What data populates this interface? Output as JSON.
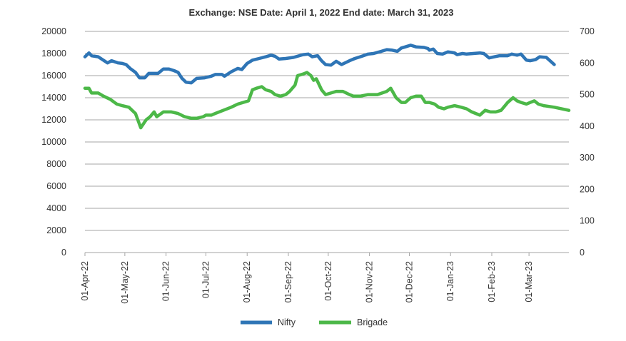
{
  "chart_data": {
    "type": "line",
    "title": "Exchange: NSE Date: April 1, 2022 End date: March 31, 2023",
    "y_left": {
      "ylim": [
        0,
        20000
      ],
      "ticks": [
        "0",
        "2000",
        "4000",
        "6000",
        "8000",
        "10000",
        "12000",
        "14000",
        "16000",
        "18000",
        "20000"
      ]
    },
    "y_right": {
      "ylim": [
        0,
        700
      ],
      "ticks": [
        "0",
        "100",
        "200",
        "300",
        "400",
        "500",
        "600",
        "700"
      ]
    },
    "x_ticks": [
      "01-Apr-22",
      "01-May-22",
      "01-Jun-22",
      "01-Jul-22",
      "01-Aug-22",
      "01-Sep-22",
      "01-Oct-22",
      "01-Nov-22",
      "01-Dec-22",
      "01-Jan-23",
      "01-Feb-23",
      "01-Mar-23"
    ],
    "grid": true,
    "legend_position": "bottom",
    "series": [
      {
        "name": "Nifty",
        "axis": "left",
        "color": "#2e75b6",
        "points": [
          [
            "2022-04-01",
            17700
          ],
          [
            "2022-04-04",
            18050
          ],
          [
            "2022-04-06",
            17800
          ],
          [
            "2022-04-11",
            17700
          ],
          [
            "2022-04-18",
            17150
          ],
          [
            "2022-04-21",
            17350
          ],
          [
            "2022-04-26",
            17150
          ],
          [
            "2022-04-29",
            17100
          ],
          [
            "2022-05-02",
            17000
          ],
          [
            "2022-05-05",
            16650
          ],
          [
            "2022-05-09",
            16300
          ],
          [
            "2022-05-12",
            15800
          ],
          [
            "2022-05-16",
            15800
          ],
          [
            "2022-05-19",
            16200
          ],
          [
            "2022-05-23",
            16200
          ],
          [
            "2022-05-26",
            16200
          ],
          [
            "2022-05-30",
            16600
          ],
          [
            "2022-06-03",
            16600
          ],
          [
            "2022-06-07",
            16450
          ],
          [
            "2022-06-10",
            16300
          ],
          [
            "2022-06-13",
            15750
          ],
          [
            "2022-06-16",
            15400
          ],
          [
            "2022-06-20",
            15350
          ],
          [
            "2022-06-24",
            15750
          ],
          [
            "2022-06-30",
            15800
          ],
          [
            "2022-07-05",
            15950
          ],
          [
            "2022-07-08",
            16100
          ],
          [
            "2022-07-13",
            16100
          ],
          [
            "2022-07-15",
            15950
          ],
          [
            "2022-07-20",
            16350
          ],
          [
            "2022-07-25",
            16650
          ],
          [
            "2022-07-28",
            16550
          ],
          [
            "2022-08-01",
            17100
          ],
          [
            "2022-08-05",
            17400
          ],
          [
            "2022-08-10",
            17550
          ],
          [
            "2022-08-15",
            17700
          ],
          [
            "2022-08-19",
            17850
          ],
          [
            "2022-08-22",
            17750
          ],
          [
            "2022-08-25",
            17500
          ],
          [
            "2022-08-30",
            17550
          ],
          [
            "2022-09-05",
            17650
          ],
          [
            "2022-09-12",
            17900
          ],
          [
            "2022-09-16",
            17950
          ],
          [
            "2022-09-19",
            17700
          ],
          [
            "2022-09-23",
            17800
          ],
          [
            "2022-09-26",
            17350
          ],
          [
            "2022-09-29",
            17000
          ],
          [
            "2022-10-03",
            16950
          ],
          [
            "2022-10-07",
            17300
          ],
          [
            "2022-10-11",
            17000
          ],
          [
            "2022-10-17",
            17350
          ],
          [
            "2022-10-21",
            17550
          ],
          [
            "2022-10-25",
            17700
          ],
          [
            "2022-10-31",
            17950
          ],
          [
            "2022-11-04",
            18000
          ],
          [
            "2022-11-10",
            18200
          ],
          [
            "2022-11-14",
            18350
          ],
          [
            "2022-11-18",
            18300
          ],
          [
            "2022-11-22",
            18200
          ],
          [
            "2022-11-25",
            18500
          ],
          [
            "2022-11-28",
            18600
          ],
          [
            "2022-12-02",
            18750
          ],
          [
            "2022-12-06",
            18600
          ],
          [
            "2022-12-12",
            18550
          ],
          [
            "2022-12-15",
            18450
          ],
          [
            "2022-12-16",
            18300
          ],
          [
            "2022-12-19",
            18400
          ],
          [
            "2022-12-22",
            18000
          ],
          [
            "2022-12-26",
            17950
          ],
          [
            "2022-12-30",
            18150
          ],
          [
            "2023-01-04",
            18050
          ],
          [
            "2023-01-06",
            17900
          ],
          [
            "2023-01-10",
            18000
          ],
          [
            "2023-01-13",
            17950
          ],
          [
            "2023-01-18",
            18000
          ],
          [
            "2023-01-23",
            18050
          ],
          [
            "2023-01-26",
            18000
          ],
          [
            "2023-01-30",
            17600
          ],
          [
            "2023-02-03",
            17700
          ],
          [
            "2023-02-07",
            17800
          ],
          [
            "2023-02-13",
            17800
          ],
          [
            "2023-02-16",
            17950
          ],
          [
            "2023-02-20",
            17850
          ],
          [
            "2023-02-23",
            17950
          ],
          [
            "2023-02-27",
            17400
          ],
          [
            "2023-03-02",
            17350
          ],
          [
            "2023-03-06",
            17450
          ],
          [
            "2023-03-09",
            17700
          ],
          [
            "2023-03-14",
            17650
          ],
          [
            "2023-03-20",
            17000
          ]
        ]
      },
      {
        "name": "Brigade",
        "axis": "right",
        "color": "#4cb848",
        "points": [
          [
            "2022-04-01",
            520
          ],
          [
            "2022-04-04",
            520
          ],
          [
            "2022-04-06",
            505
          ],
          [
            "2022-04-11",
            505
          ],
          [
            "2022-04-15",
            495
          ],
          [
            "2022-04-20",
            485
          ],
          [
            "2022-04-25",
            470
          ],
          [
            "2022-04-29",
            465
          ],
          [
            "2022-05-04",
            460
          ],
          [
            "2022-05-09",
            440
          ],
          [
            "2022-05-13",
            395
          ],
          [
            "2022-05-17",
            420
          ],
          [
            "2022-05-20",
            430
          ],
          [
            "2022-05-23",
            445
          ],
          [
            "2022-05-25",
            430
          ],
          [
            "2022-05-30",
            445
          ],
          [
            "2022-06-05",
            445
          ],
          [
            "2022-06-10",
            440
          ],
          [
            "2022-06-15",
            430
          ],
          [
            "2022-06-20",
            425
          ],
          [
            "2022-06-24",
            425
          ],
          [
            "2022-06-29",
            430
          ],
          [
            "2022-07-01",
            435
          ],
          [
            "2022-07-05",
            435
          ],
          [
            "2022-07-08",
            440
          ],
          [
            "2022-07-14",
            450
          ],
          [
            "2022-07-20",
            460
          ],
          [
            "2022-07-25",
            470
          ],
          [
            "2022-07-29",
            475
          ],
          [
            "2022-08-02",
            480
          ],
          [
            "2022-08-05",
            515
          ],
          [
            "2022-08-08",
            520
          ],
          [
            "2022-08-12",
            525
          ],
          [
            "2022-08-15",
            515
          ],
          [
            "2022-08-19",
            510
          ],
          [
            "2022-08-22",
            500
          ],
          [
            "2022-08-26",
            495
          ],
          [
            "2022-08-30",
            500
          ],
          [
            "2022-09-02",
            510
          ],
          [
            "2022-09-06",
            530
          ],
          [
            "2022-09-08",
            560
          ],
          [
            "2022-09-12",
            565
          ],
          [
            "2022-09-15",
            570
          ],
          [
            "2022-09-18",
            560
          ],
          [
            "2022-09-20",
            545
          ],
          [
            "2022-09-22",
            550
          ],
          [
            "2022-09-26",
            515
          ],
          [
            "2022-09-29",
            500
          ],
          [
            "2022-10-03",
            505
          ],
          [
            "2022-10-07",
            510
          ],
          [
            "2022-10-12",
            510
          ],
          [
            "2022-10-17",
            500
          ],
          [
            "2022-10-20",
            495
          ],
          [
            "2022-10-25",
            495
          ],
          [
            "2022-10-31",
            500
          ],
          [
            "2022-11-07",
            500
          ],
          [
            "2022-11-14",
            510
          ],
          [
            "2022-11-17",
            520
          ],
          [
            "2022-11-21",
            490
          ],
          [
            "2022-11-25",
            475
          ],
          [
            "2022-11-28",
            475
          ],
          [
            "2022-12-02",
            490
          ],
          [
            "2022-12-06",
            495
          ],
          [
            "2022-12-10",
            495
          ],
          [
            "2022-12-13",
            475
          ],
          [
            "2022-12-16",
            475
          ],
          [
            "2022-12-20",
            470
          ],
          [
            "2022-12-23",
            460
          ],
          [
            "2022-12-27",
            455
          ],
          [
            "2022-12-30",
            460
          ],
          [
            "2023-01-04",
            465
          ],
          [
            "2023-01-09",
            460
          ],
          [
            "2023-01-13",
            455
          ],
          [
            "2023-01-17",
            445
          ],
          [
            "2023-01-23",
            435
          ],
          [
            "2023-01-27",
            450
          ],
          [
            "2023-01-31",
            445
          ],
          [
            "2023-02-04",
            445
          ],
          [
            "2023-02-08",
            450
          ],
          [
            "2023-02-10",
            460
          ],
          [
            "2023-02-13",
            475
          ],
          [
            "2023-02-17",
            490
          ],
          [
            "2023-02-20",
            480
          ],
          [
            "2023-02-23",
            475
          ],
          [
            "2023-02-27",
            470
          ],
          [
            "2023-03-02",
            475
          ],
          [
            "2023-03-05",
            480
          ],
          [
            "2023-03-08",
            470
          ],
          [
            "2023-03-12",
            465
          ],
          [
            "2023-03-20",
            460
          ],
          [
            "2023-03-31",
            450
          ]
        ]
      }
    ]
  }
}
